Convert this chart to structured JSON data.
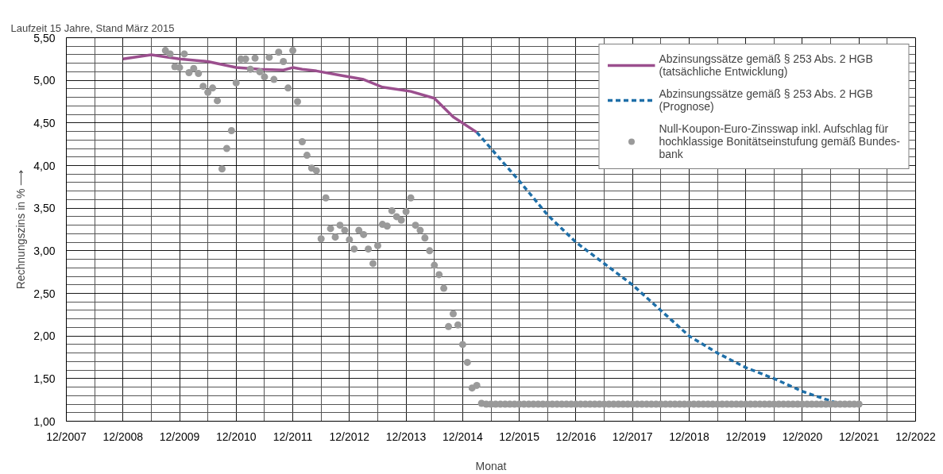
{
  "chart_data": {
    "type": "line",
    "title": "Laufzeit 15 Jahre, Stand März 2015",
    "xlabel": "Monat",
    "ylabel": "Rechnungszins in % ⟶",
    "xlim": [
      "2007-12",
      "2022-12"
    ],
    "xticks": [
      {
        "value": "2007-12",
        "label": "12/2007"
      },
      {
        "value": "2008-12",
        "label": "12/2008"
      },
      {
        "value": "2009-12",
        "label": "12/2009"
      },
      {
        "value": "2010-12",
        "label": "12/2010"
      },
      {
        "value": "2011-12",
        "label": "12/2011"
      },
      {
        "value": "2012-12",
        "label": "12/2012"
      },
      {
        "value": "2013-12",
        "label": "12/2013"
      },
      {
        "value": "2014-12",
        "label": "12/2014"
      },
      {
        "value": "2015-12",
        "label": "12/2015"
      },
      {
        "value": "2016-12",
        "label": "12/2016"
      },
      {
        "value": "2017-12",
        "label": "12/2017"
      },
      {
        "value": "2018-12",
        "label": "12/2018"
      },
      {
        "value": "2019-12",
        "label": "12/2019"
      },
      {
        "value": "2020-12",
        "label": "12/2020"
      },
      {
        "value": "2021-12",
        "label": "12/2021"
      },
      {
        "value": "2022-12",
        "label": "12/2022"
      }
    ],
    "ylim": [
      1,
      5.5
    ],
    "yticks": [
      {
        "value": 1,
        "label": "1,00"
      },
      {
        "value": 1.5,
        "label": "1,50"
      },
      {
        "value": 2,
        "label": "2,00"
      },
      {
        "value": 2.5,
        "label": "2,50"
      },
      {
        "value": 3,
        "label": "3,00"
      },
      {
        "value": 3.5,
        "label": "3,50"
      },
      {
        "value": 4,
        "label": "4,00"
      },
      {
        "value": 4.5,
        "label": "4,50"
      },
      {
        "value": 5,
        "label": "5,00"
      },
      {
        "value": 5.5,
        "label": "5,50"
      }
    ],
    "grid": true,
    "legend": "top right",
    "series": [
      {
        "name": "Abzinsungssätze gemäß § 253 Abs. 2 HGB\n(tatsächliche Entwicklung)",
        "line_style": "solid",
        "color": "#9b4f8e",
        "x": [
          "2008-12",
          "2009-06",
          "2009-12",
          "2010-06",
          "2010-12",
          "2011-05",
          "2011-10",
          "2011-12",
          "2012-02",
          "2012-05",
          "2012-10",
          "2013-03",
          "2013-07",
          "2014-01",
          "2014-06",
          "2014-10",
          "2015-03"
        ],
        "values": [
          5.25,
          5.3,
          5.25,
          5.22,
          5.15,
          5.13,
          5.12,
          5.15,
          5.13,
          5.11,
          5.06,
          5.01,
          4.92,
          4.87,
          4.79,
          4.57,
          4.39
        ]
      },
      {
        "name": "Abzinsungssätze gemäß § 253 Abs. 2 HGB\n(Prognose)",
        "line_style": "dashed",
        "color": "#1f6fa8",
        "x": [
          "2015-03",
          "2015-12",
          "2016-06",
          "2016-12",
          "2017-12",
          "2018-06",
          "2018-12",
          "2019-06",
          "2019-12",
          "2020-06",
          "2020-12",
          "2021-08"
        ],
        "values": [
          4.39,
          3.82,
          3.42,
          3.1,
          2.6,
          2.3,
          2.0,
          1.8,
          1.63,
          1.5,
          1.35,
          1.2
        ]
      },
      {
        "name": "Null-Koupon-Euro-Zinsswap inkl. Aufschlag für\nhochklassige Bonitätseinstufung gemäß Bundes-\nbank",
        "type": "scatter",
        "marker": "circle",
        "color": "#9a9a9a",
        "x": [
          "2009-09",
          "2009-10",
          "2009-11",
          "2009-12",
          "2010-01",
          "2010-02",
          "2010-03",
          "2010-04",
          "2010-05",
          "2010-06",
          "2010-07",
          "2010-08",
          "2010-09",
          "2010-10",
          "2010-11",
          "2010-12",
          "2011-01",
          "2011-02",
          "2011-03",
          "2011-04",
          "2011-05",
          "2011-06",
          "2011-07",
          "2011-08",
          "2011-09",
          "2011-10",
          "2011-11",
          "2011-12",
          "2012-01",
          "2012-02",
          "2012-03",
          "2012-04",
          "2012-05",
          "2012-06",
          "2012-07",
          "2012-08",
          "2012-09",
          "2012-10",
          "2012-11",
          "2012-12",
          "2013-01",
          "2013-02",
          "2013-03",
          "2013-04",
          "2013-05",
          "2013-06",
          "2013-07",
          "2013-08",
          "2013-09",
          "2013-10",
          "2013-11",
          "2013-12",
          "2014-01",
          "2014-02",
          "2014-03",
          "2014-04",
          "2014-05",
          "2014-06",
          "2014-07",
          "2014-08",
          "2014-09",
          "2014-10",
          "2014-11",
          "2014-12",
          "2015-01",
          "2015-02",
          "2015-03",
          "2015-04",
          "2015-05",
          "2015-06",
          "2015-07",
          "2015-08",
          "2015-09",
          "2015-10",
          "2015-11",
          "2015-12",
          "2016-01",
          "2016-02",
          "2016-03",
          "2016-04",
          "2016-05",
          "2016-06",
          "2016-07",
          "2016-08",
          "2016-09",
          "2016-10",
          "2016-11",
          "2016-12",
          "2017-01",
          "2017-02",
          "2017-03",
          "2017-04",
          "2017-05",
          "2017-06",
          "2017-07",
          "2017-08",
          "2017-09",
          "2017-10",
          "2017-11",
          "2017-12",
          "2018-01",
          "2018-02",
          "2018-03",
          "2018-04",
          "2018-05",
          "2018-06",
          "2018-07",
          "2018-08",
          "2018-09",
          "2018-10",
          "2018-11",
          "2018-12",
          "2019-01",
          "2019-02",
          "2019-03",
          "2019-04",
          "2019-05",
          "2019-06",
          "2019-07",
          "2019-08",
          "2019-09",
          "2019-10",
          "2019-11",
          "2019-12",
          "2020-01",
          "2020-02",
          "2020-03",
          "2020-04",
          "2020-05",
          "2020-06",
          "2020-07",
          "2020-08",
          "2020-09",
          "2020-10",
          "2020-11",
          "2020-12",
          "2021-01",
          "2021-02",
          "2021-03",
          "2021-04",
          "2021-05",
          "2021-06",
          "2021-07",
          "2021-08",
          "2021-09",
          "2021-10",
          "2021-11",
          "2021-12"
        ],
        "values": [
          5.35,
          5.31,
          5.16,
          5.15,
          5.31,
          5.09,
          5.14,
          5.08,
          4.93,
          4.86,
          4.91,
          4.76,
          3.96,
          4.2,
          4.41,
          4.97,
          5.25,
          5.25,
          5.13,
          5.26,
          5.1,
          5.04,
          5.27,
          5.01,
          5.33,
          5.22,
          4.91,
          5.35,
          4.75,
          4.28,
          4.12,
          3.97,
          3.94,
          3.14,
          3.62,
          3.26,
          3.16,
          3.3,
          3.24,
          3.13,
          3.02,
          3.24,
          3.19,
          3.02,
          2.85,
          3.06,
          3.31,
          3.29,
          3.47,
          3.4,
          3.36,
          3.46,
          3.62,
          3.3,
          3.24,
          3.15,
          3.0,
          2.83,
          2.72,
          2.56,
          2.11,
          2.26,
          2.13,
          1.9,
          1.69,
          1.39,
          1.42,
          1.21,
          1.2,
          1.2,
          1.2,
          1.2,
          1.2,
          1.2,
          1.2,
          1.2,
          1.2,
          1.2,
          1.2,
          1.2,
          1.2,
          1.2,
          1.2,
          1.2,
          1.2,
          1.2,
          1.2,
          1.2,
          1.2,
          1.2,
          1.2,
          1.2,
          1.2,
          1.2,
          1.2,
          1.2,
          1.2,
          1.2,
          1.2,
          1.2,
          1.2,
          1.2,
          1.2,
          1.2,
          1.2,
          1.2,
          1.2,
          1.2,
          1.2,
          1.2,
          1.2,
          1.2,
          1.2,
          1.2,
          1.2,
          1.2,
          1.2,
          1.2,
          1.2,
          1.2,
          1.2,
          1.2,
          1.2,
          1.2,
          1.2,
          1.2,
          1.2,
          1.2,
          1.2,
          1.2,
          1.2,
          1.2,
          1.2,
          1.2,
          1.2,
          1.2,
          1.2,
          1.2,
          1.2,
          1.2,
          1.2,
          1.2,
          1.2,
          1.2,
          1.2,
          1.2,
          1.2,
          1.2
        ]
      }
    ]
  }
}
